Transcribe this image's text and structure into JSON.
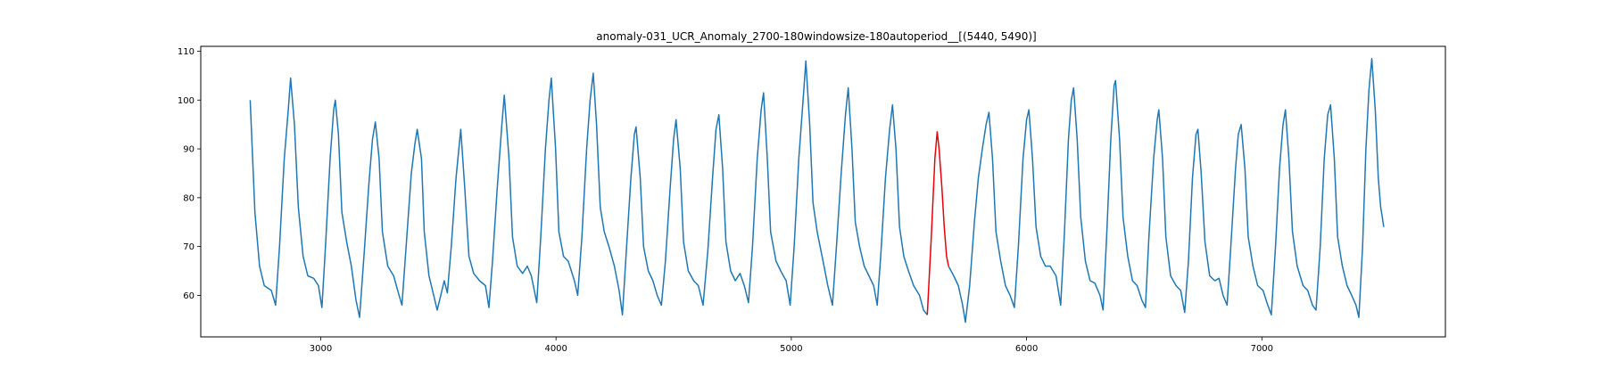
{
  "chart_data": {
    "type": "line",
    "title": "anomaly-031_UCR_Anomaly_2700-180windowsize-180autoperiod__[(5440, 5490)]",
    "xlabel": "",
    "ylabel": "",
    "xlim": [
      2490,
      7780
    ],
    "ylim": [
      51.5,
      111
    ],
    "xticks": [
      3000,
      4000,
      5000,
      6000,
      7000
    ],
    "yticks": [
      60,
      70,
      80,
      90,
      100,
      110
    ],
    "grid": false,
    "legend": "none",
    "colors": {
      "series": "#1f77b4",
      "anomaly": "#e8000b",
      "axes": "#000000"
    },
    "series": [
      {
        "values": [
          [
            2700,
            100
          ],
          [
            2720,
            77
          ],
          [
            2740,
            66
          ],
          [
            2760,
            62
          ],
          [
            2790,
            61
          ],
          [
            2808,
            58
          ],
          [
            2825,
            70
          ],
          [
            2845,
            88
          ],
          [
            2862,
            98
          ],
          [
            2872,
            104.5
          ],
          [
            2888,
            95
          ],
          [
            2905,
            78
          ],
          [
            2925,
            68
          ],
          [
            2945,
            64
          ],
          [
            2970,
            63.5
          ],
          [
            2990,
            62
          ],
          [
            3005,
            57.5
          ],
          [
            3020,
            70
          ],
          [
            3040,
            88
          ],
          [
            3055,
            98
          ],
          [
            3062,
            100
          ],
          [
            3075,
            93
          ],
          [
            3090,
            77
          ],
          [
            3110,
            71
          ],
          [
            3130,
            66
          ],
          [
            3150,
            59
          ],
          [
            3165,
            55.5
          ],
          [
            3185,
            69
          ],
          [
            3205,
            83
          ],
          [
            3220,
            92
          ],
          [
            3232,
            95.5
          ],
          [
            3248,
            88
          ],
          [
            3262,
            73
          ],
          [
            3285,
            66
          ],
          [
            3310,
            64
          ],
          [
            3330,
            60.5
          ],
          [
            3345,
            58
          ],
          [
            3360,
            68
          ],
          [
            3385,
            85
          ],
          [
            3400,
            91
          ],
          [
            3410,
            94
          ],
          [
            3428,
            88
          ],
          [
            3440,
            73
          ],
          [
            3460,
            64
          ],
          [
            3480,
            60
          ],
          [
            3495,
            57
          ],
          [
            3510,
            60
          ],
          [
            3525,
            63
          ],
          [
            3538,
            60.5
          ],
          [
            3555,
            70
          ],
          [
            3575,
            84
          ],
          [
            3595,
            94
          ],
          [
            3612,
            82
          ],
          [
            3630,
            68
          ],
          [
            3650,
            64.5
          ],
          [
            3675,
            63
          ],
          [
            3700,
            62
          ],
          [
            3715,
            57.5
          ],
          [
            3730,
            67
          ],
          [
            3750,
            82
          ],
          [
            3770,
            95
          ],
          [
            3780,
            101
          ],
          [
            3800,
            88
          ],
          [
            3815,
            72
          ],
          [
            3835,
            66
          ],
          [
            3858,
            64.5
          ],
          [
            3878,
            66
          ],
          [
            3895,
            64
          ],
          [
            3918,
            58.5
          ],
          [
            3935,
            72
          ],
          [
            3955,
            90
          ],
          [
            3970,
            100
          ],
          [
            3980,
            104.5
          ],
          [
            3998,
            90
          ],
          [
            4012,
            73
          ],
          [
            4032,
            68
          ],
          [
            4052,
            67
          ],
          [
            4078,
            63
          ],
          [
            4092,
            60
          ],
          [
            4110,
            72
          ],
          [
            4130,
            90
          ],
          [
            4145,
            100
          ],
          [
            4158,
            105.5
          ],
          [
            4172,
            95
          ],
          [
            4188,
            78
          ],
          [
            4205,
            73
          ],
          [
            4225,
            70
          ],
          [
            4248,
            66
          ],
          [
            4268,
            61
          ],
          [
            4282,
            56
          ],
          [
            4300,
            70
          ],
          [
            4318,
            84
          ],
          [
            4333,
            93
          ],
          [
            4340,
            94.5
          ],
          [
            4358,
            84
          ],
          [
            4372,
            70
          ],
          [
            4392,
            65
          ],
          [
            4412,
            63
          ],
          [
            4430,
            60
          ],
          [
            4448,
            58
          ],
          [
            4465,
            67
          ],
          [
            4485,
            82
          ],
          [
            4500,
            92
          ],
          [
            4510,
            96
          ],
          [
            4528,
            86
          ],
          [
            4542,
            71
          ],
          [
            4562,
            65
          ],
          [
            4585,
            63
          ],
          [
            4605,
            62
          ],
          [
            4625,
            58
          ],
          [
            4645,
            69
          ],
          [
            4665,
            84
          ],
          [
            4680,
            94
          ],
          [
            4692,
            97
          ],
          [
            4708,
            86
          ],
          [
            4722,
            71
          ],
          [
            4742,
            65
          ],
          [
            4762,
            63
          ],
          [
            4782,
            64.5
          ],
          [
            4800,
            62
          ],
          [
            4818,
            58.5
          ],
          [
            4835,
            70
          ],
          [
            4855,
            88
          ],
          [
            4872,
            98
          ],
          [
            4882,
            101.5
          ],
          [
            4898,
            88
          ],
          [
            4912,
            73
          ],
          [
            4935,
            67
          ],
          [
            4955,
            65
          ],
          [
            4978,
            63
          ],
          [
            4995,
            58
          ],
          [
            5012,
            70
          ],
          [
            5032,
            88
          ],
          [
            5050,
            100
          ],
          [
            5062,
            108
          ],
          [
            5078,
            95
          ],
          [
            5092,
            79
          ],
          [
            5110,
            73
          ],
          [
            5135,
            67
          ],
          [
            5155,
            62
          ],
          [
            5175,
            58
          ],
          [
            5192,
            70
          ],
          [
            5212,
            85
          ],
          [
            5230,
            97
          ],
          [
            5242,
            102.5
          ],
          [
            5258,
            90
          ],
          [
            5272,
            75
          ],
          [
            5290,
            70
          ],
          [
            5310,
            66
          ],
          [
            5330,
            64
          ],
          [
            5350,
            62
          ],
          [
            5365,
            58
          ],
          [
            5380,
            68
          ],
          [
            5400,
            84
          ],
          [
            5418,
            94
          ],
          [
            5430,
            99
          ],
          [
            5445,
            90
          ],
          [
            5460,
            74
          ],
          [
            5478,
            68
          ],
          [
            5498,
            65
          ],
          [
            5520,
            62
          ],
          [
            5545,
            60
          ],
          [
            5562,
            57
          ],
          [
            5578,
            56
          ]
        ]
      },
      {
        "values": [
          [
            5578,
            56
          ],
          [
            5595,
            72
          ],
          [
            5610,
            88
          ],
          [
            5620,
            93.5
          ],
          [
            5628,
            90
          ],
          [
            5640,
            82
          ],
          [
            5650,
            74
          ],
          [
            5660,
            68
          ],
          [
            5668,
            66
          ]
        ]
      },
      {
        "values": [
          [
            5668,
            66
          ],
          [
            5690,
            64
          ],
          [
            5710,
            62
          ],
          [
            5728,
            58
          ],
          [
            5740,
            54.5
          ],
          [
            5758,
            62
          ],
          [
            5778,
            75
          ],
          [
            5795,
            84
          ],
          [
            5812,
            90
          ],
          [
            5828,
            95
          ],
          [
            5840,
            97.5
          ],
          [
            5855,
            88
          ],
          [
            5870,
            73
          ],
          [
            5890,
            67
          ],
          [
            5910,
            62
          ],
          [
            5930,
            60
          ],
          [
            5948,
            57.5
          ],
          [
            5965,
            70
          ],
          [
            5985,
            88
          ],
          [
            6000,
            96
          ],
          [
            6010,
            98
          ],
          [
            6025,
            88
          ],
          [
            6040,
            74
          ],
          [
            6060,
            68
          ],
          [
            6080,
            66
          ],
          [
            6100,
            66
          ],
          [
            6125,
            64
          ],
          [
            6145,
            58
          ],
          [
            6160,
            72
          ],
          [
            6178,
            92
          ],
          [
            6190,
            100
          ],
          [
            6200,
            102.5
          ],
          [
            6215,
            92
          ],
          [
            6230,
            76
          ],
          [
            6250,
            67
          ],
          [
            6270,
            63
          ],
          [
            6290,
            62.5
          ],
          [
            6312,
            60
          ],
          [
            6325,
            57
          ],
          [
            6340,
            72
          ],
          [
            6358,
            92
          ],
          [
            6372,
            103
          ],
          [
            6378,
            104
          ],
          [
            6395,
            92
          ],
          [
            6410,
            76
          ],
          [
            6430,
            68
          ],
          [
            6450,
            63
          ],
          [
            6470,
            62
          ],
          [
            6490,
            59
          ],
          [
            6505,
            57.5
          ],
          [
            6520,
            72
          ],
          [
            6540,
            88
          ],
          [
            6555,
            96
          ],
          [
            6562,
            98
          ],
          [
            6578,
            88
          ],
          [
            6592,
            72
          ],
          [
            6612,
            64
          ],
          [
            6635,
            62
          ],
          [
            6655,
            61
          ],
          [
            6672,
            56.5
          ],
          [
            6688,
            67
          ],
          [
            6705,
            84
          ],
          [
            6720,
            93
          ],
          [
            6728,
            94
          ],
          [
            6742,
            85
          ],
          [
            6758,
            71
          ],
          [
            6778,
            64
          ],
          [
            6800,
            63
          ],
          [
            6818,
            63.5
          ],
          [
            6835,
            60
          ],
          [
            6852,
            58
          ],
          [
            6868,
            70
          ],
          [
            6888,
            86
          ],
          [
            6900,
            93
          ],
          [
            6912,
            95
          ],
          [
            6928,
            86
          ],
          [
            6942,
            72
          ],
          [
            6962,
            66
          ],
          [
            6982,
            62
          ],
          [
            7005,
            61
          ],
          [
            7025,
            58
          ],
          [
            7040,
            56
          ],
          [
            7058,
            70
          ],
          [
            7075,
            86
          ],
          [
            7090,
            95
          ],
          [
            7100,
            98
          ],
          [
            7115,
            88
          ],
          [
            7130,
            73
          ],
          [
            7150,
            66
          ],
          [
            7175,
            62
          ],
          [
            7195,
            61
          ],
          [
            7215,
            58
          ],
          [
            7230,
            57
          ],
          [
            7248,
            70
          ],
          [
            7265,
            88
          ],
          [
            7280,
            97
          ],
          [
            7292,
            99
          ],
          [
            7308,
            88
          ],
          [
            7322,
            72
          ],
          [
            7342,
            66
          ],
          [
            7362,
            62
          ],
          [
            7382,
            60
          ],
          [
            7400,
            58
          ],
          [
            7412,
            55.5
          ],
          [
            7428,
            70
          ],
          [
            7442,
            90
          ],
          [
            7455,
            102
          ],
          [
            7467,
            108.5
          ],
          [
            7482,
            98
          ],
          [
            7495,
            84
          ],
          [
            7505,
            78
          ],
          [
            7512,
            76
          ],
          [
            7518,
            74
          ]
        ]
      }
    ]
  }
}
